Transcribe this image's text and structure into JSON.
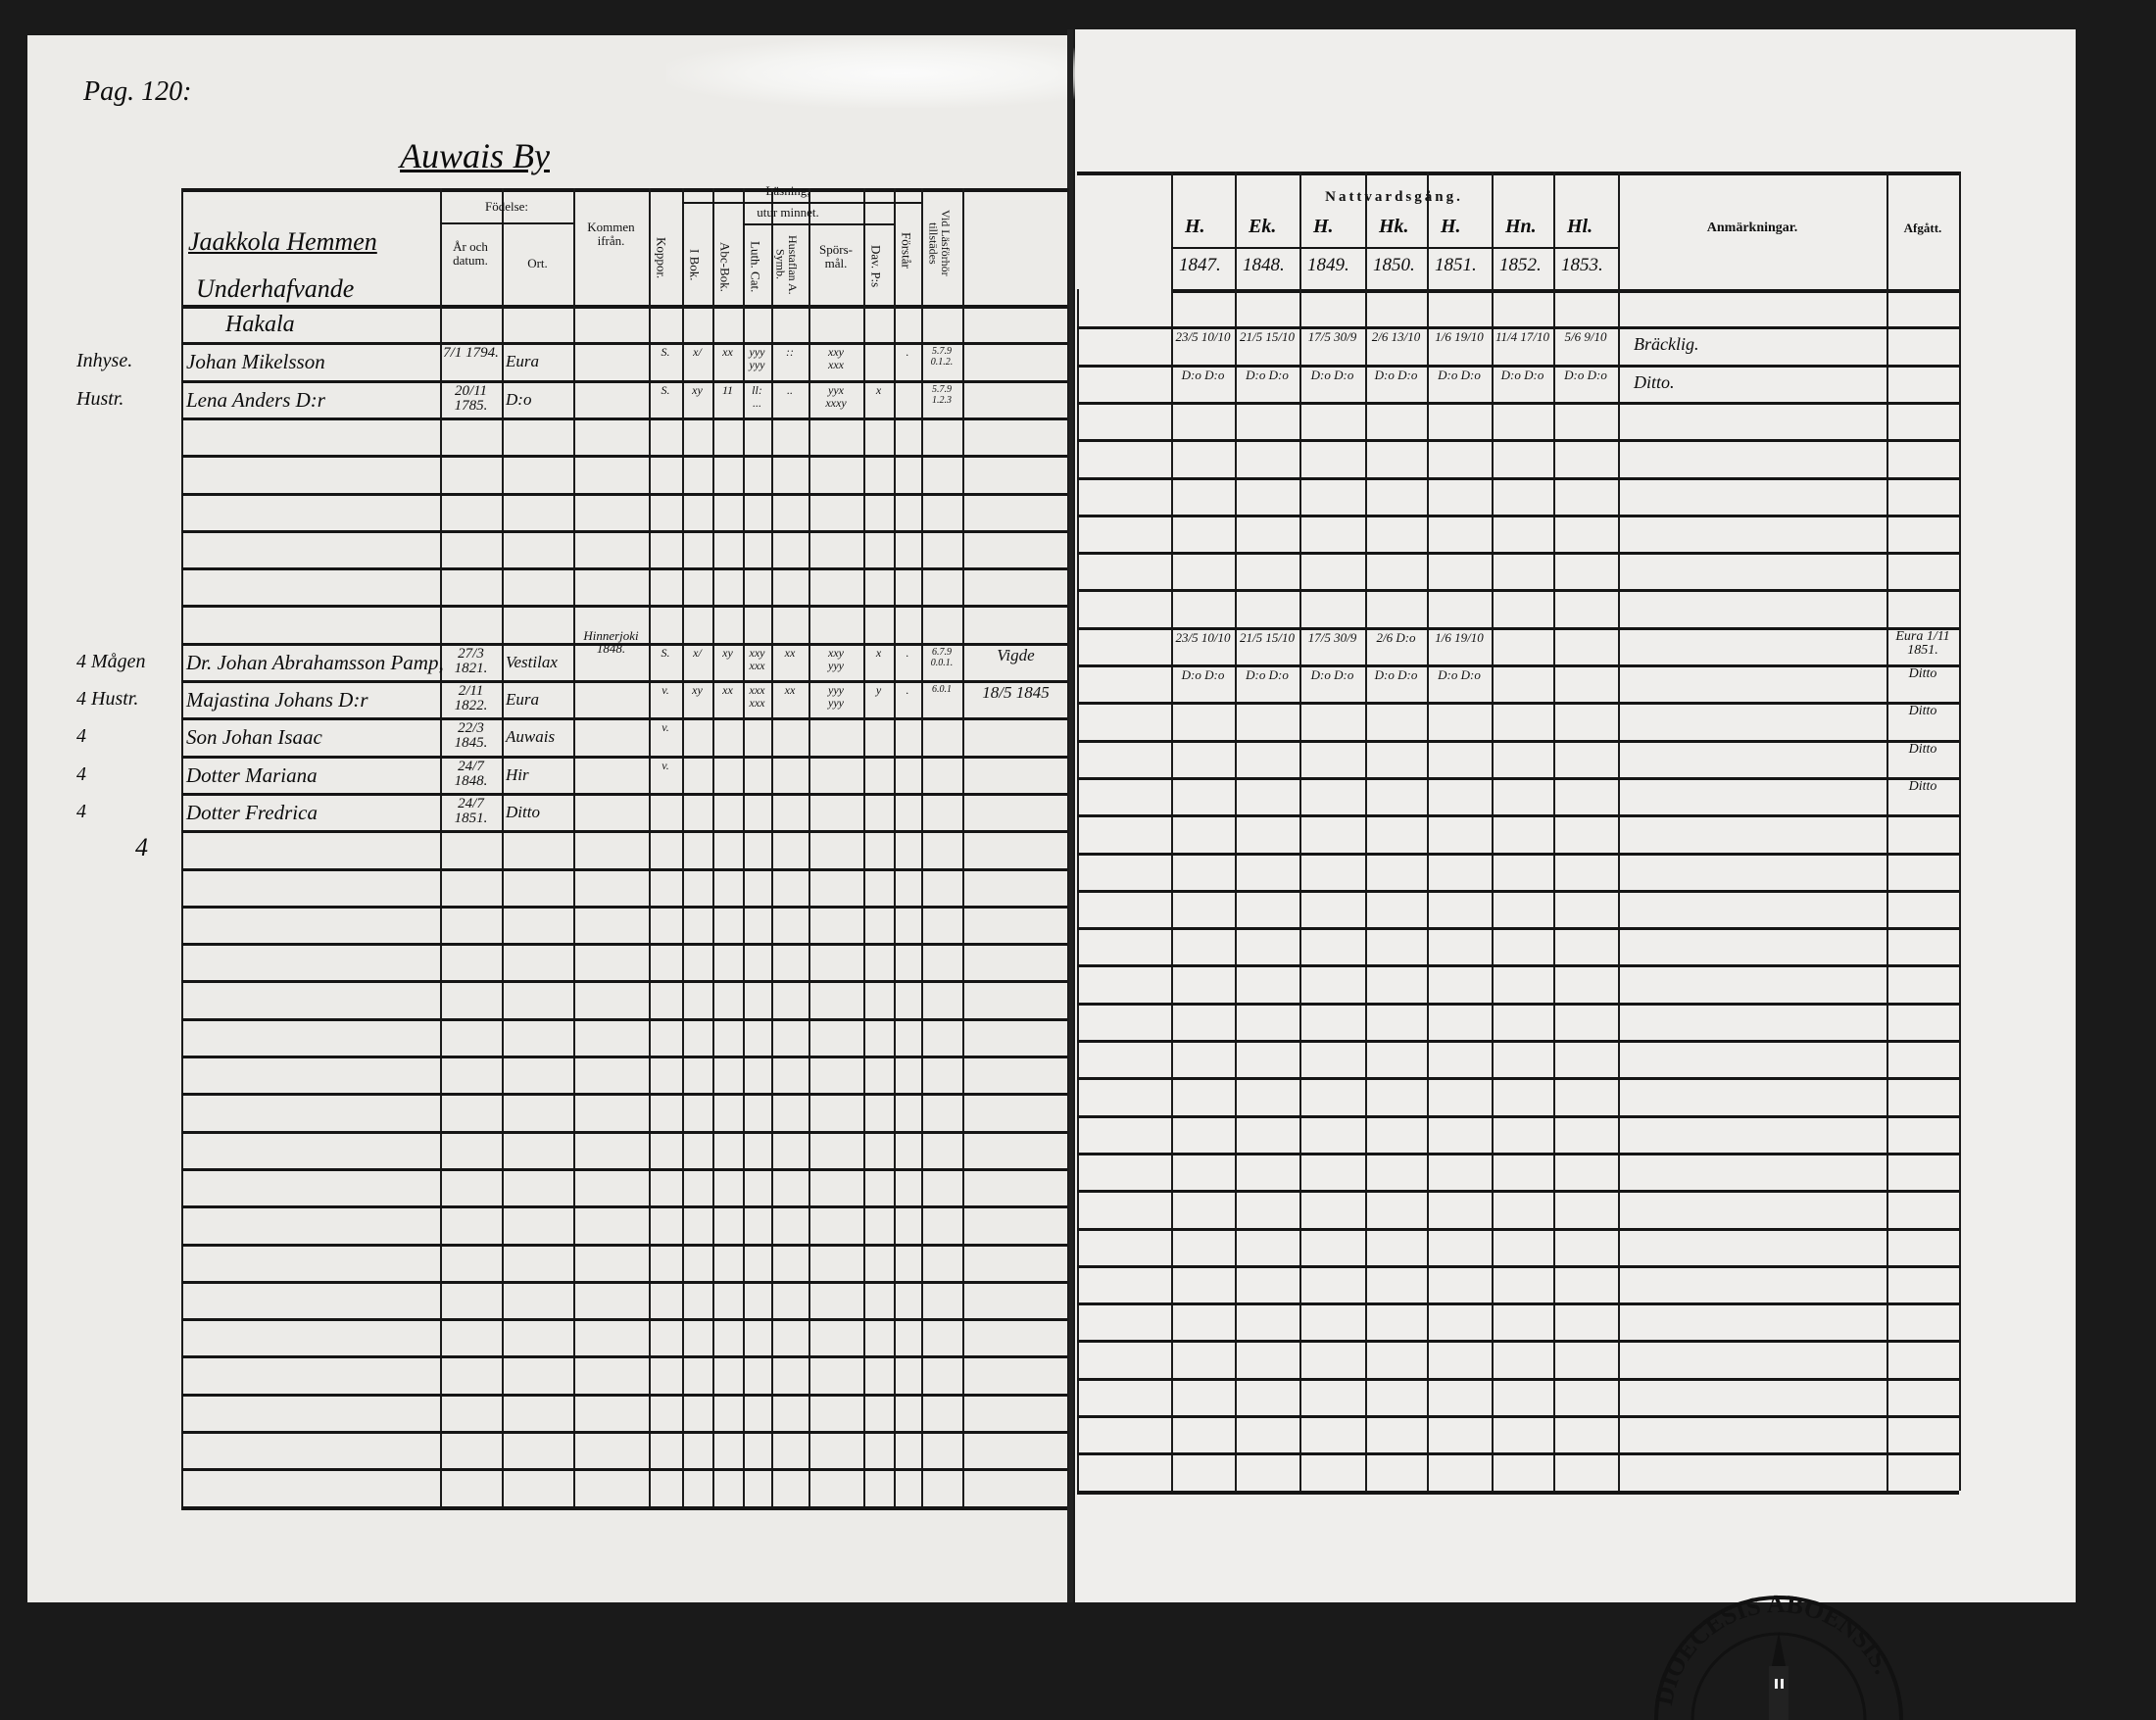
{
  "page_label": "Pag. 120:",
  "village": "Auwais By",
  "left_header": {
    "farm": "Jaakkola Hemmen",
    "dependents": "Underhafvande",
    "birth": "Födelse:",
    "year_date": "År och datum.",
    "place": "Ort.",
    "came_from": "Kommen ifrån.",
    "smallpox": "Koppor.",
    "reading": "Läsning,",
    "by_heart": "utur minnet.",
    "book": "I Bok.",
    "abc": "Abc-Bok.",
    "luth": "Luth. Cat.",
    "hustaflan": "Hustaflan A. Symb.",
    "questions": "Spörs-mål.",
    "dav": "Dav. P:s",
    "understands": "Förstår",
    "present": "Vid Läsförhör tillstädes"
  },
  "right_header": {
    "communion": "Nattvardsgång.",
    "markers": [
      "H.",
      "Ek.",
      "H.",
      "Hk.",
      "H.",
      "Hn.",
      "Hl."
    ],
    "years": [
      "1847.",
      "1848.",
      "1849.",
      "1850.",
      "1851.",
      "1852.",
      "1853."
    ],
    "remarks": "Anmärkningar.",
    "departed": "Afgått."
  },
  "household_name": "Hakala",
  "entries": [
    {
      "margin": "Inhyse.",
      "name": "Johan Mikelsson",
      "born": "7/1 1794.",
      "place": "Eura",
      "came_from": "",
      "smallpox": "S.",
      "book": "x/",
      "abc": "xx",
      "luth": "yyy\nyyy",
      "hustaflan": "::",
      "questions": "xxy\nxxx",
      "dav": "",
      "understands": ".",
      "present": "5.7.9\n0.1.2.",
      "extra": "",
      "communion": [
        "23/5 10/10",
        "21/5 15/10",
        "17/5 30/9",
        "2/6 13/10",
        "1/6 19/10",
        "11/4 17/10",
        "5/6 9/10"
      ],
      "remarks": "Bräcklig.",
      "departed": ""
    },
    {
      "margin": "Hustr.",
      "name": "Lena Anders D:r",
      "born": "20/11 1785.",
      "place": "D:o",
      "came_from": "",
      "smallpox": "S.",
      "book": "xy",
      "abc": "11",
      "luth": "ll:\n...",
      "hustaflan": "..",
      "questions": "yyx\nxxxy",
      "dav": "x",
      "understands": "",
      "present": "5.7.9\n1.2.3",
      "extra": "",
      "communion": [
        "D:o D:o",
        "D:o D:o",
        "D:o D:o",
        "D:o D:o",
        "D:o D:o",
        "D:o D:o",
        "D:o D:o"
      ],
      "remarks": "Ditto.",
      "departed": ""
    },
    {
      "margin": "4 Mågen",
      "name": "Dr. Johan Abrahamsson Pamp,",
      "born": "27/3 1821.",
      "place": "Vestilax",
      "came_from": "Hinnerjoki 1848.",
      "smallpox": "S.",
      "book": "x/",
      "abc": "xy",
      "luth": "xxy\nxxx",
      "hustaflan": "xx",
      "questions": "xxy\nyyy",
      "dav": "x",
      "understands": ".",
      "present": "6.7.9\n0.0.1.",
      "extra": "Vigde",
      "communion": [
        "23/5 10/10",
        "21/5 15/10",
        "17/5 30/9",
        "2/6 D:o",
        "1/6 19/10",
        "",
        ""
      ],
      "remarks": "",
      "departed": "Eura 1/11 1851."
    },
    {
      "margin": "4 Hustr.",
      "name": "Majastina Johans D:r",
      "born": "2/11 1822.",
      "place": "Eura",
      "came_from": "",
      "smallpox": "v.",
      "book": "xy",
      "abc": "xx",
      "luth": "xxx\nxxx",
      "hustaflan": "xx",
      "questions": "yyy\nyyy",
      "dav": "y",
      "understands": ".",
      "present": "6.0.1",
      "extra": "18/5 1845",
      "communion": [
        "D:o D:o",
        "D:o D:o",
        "D:o D:o",
        "D:o D:o",
        "D:o D:o",
        "",
        ""
      ],
      "remarks": "",
      "departed": "Ditto"
    },
    {
      "margin": "4",
      "name": "Son Johan Isaac",
      "born": "22/3 1845.",
      "place": "Auwais",
      "came_from": "",
      "smallpox": "v.",
      "book": "",
      "abc": "",
      "luth": "",
      "hustaflan": "",
      "questions": "",
      "dav": "",
      "understands": "",
      "present": "",
      "extra": "",
      "communion": [
        "",
        "",
        "",
        "",
        "",
        "",
        ""
      ],
      "remarks": "",
      "departed": "Ditto"
    },
    {
      "margin": "4",
      "name": "Dotter Mariana",
      "born": "24/7 1848.",
      "place": "Hir",
      "came_from": "",
      "smallpox": "v.",
      "book": "",
      "abc": "",
      "luth": "",
      "hustaflan": "",
      "questions": "",
      "dav": "",
      "understands": "",
      "present": "",
      "extra": "",
      "communion": [
        "",
        "",
        "",
        "",
        "",
        "",
        ""
      ],
      "remarks": "",
      "departed": "Ditto"
    },
    {
      "margin": "4",
      "name": "Dotter Fredrica",
      "born": "24/7 1851.",
      "place": "Ditto",
      "came_from": "",
      "smallpox": "",
      "book": "",
      "abc": "",
      "luth": "",
      "hustaflan": "",
      "questions": "",
      "dav": "",
      "understands": "",
      "present": "",
      "extra": "",
      "communion": [
        "",
        "",
        "",
        "",
        "",
        "",
        ""
      ],
      "remarks": "",
      "departed": "Ditto"
    }
  ],
  "extra_margin_mark": "4",
  "seal_text": "DIOECESIS ABOENSIS."
}
